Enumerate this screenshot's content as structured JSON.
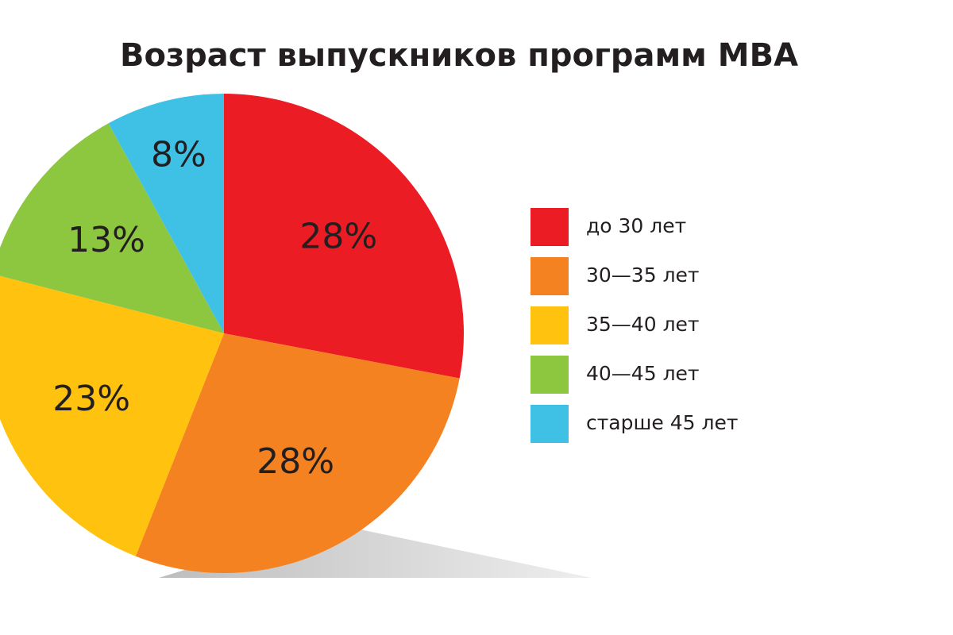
{
  "chart_data": {
    "type": "pie",
    "title": "Возраст выпускников программ MBA",
    "categories": [
      "до 30 лет",
      "30—35 лет",
      "35—40 лет",
      "40—45 лет",
      "старше 45 лет"
    ],
    "values": [
      28,
      28,
      23,
      13,
      8
    ],
    "value_labels": [
      "28%",
      "28%",
      "23%",
      "13%",
      "8%"
    ],
    "colors": [
      "#ec1c24",
      "#f58220",
      "#ffc20e",
      "#8dc63f",
      "#3fc1e6"
    ]
  }
}
